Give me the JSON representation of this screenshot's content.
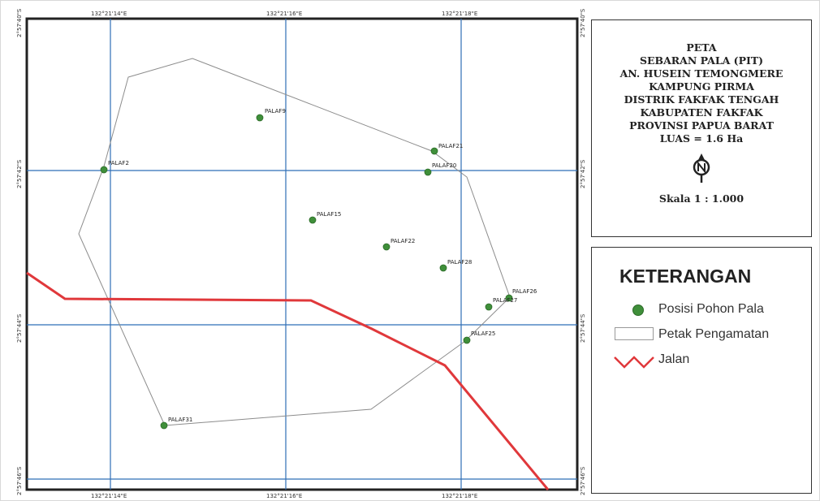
{
  "map": {
    "lon_labels": [
      "132°21'14\"E",
      "132°21'16\"E",
      "132°21'18\"E"
    ],
    "lat_labels": [
      "2°57'40\"S",
      "2°57'42\"S",
      "2°57'44\"S",
      "2°57'46\"S"
    ],
    "points": [
      {
        "id": "PALAF2",
        "label": "PALAF2"
      },
      {
        "id": "PALAF9",
        "label": "PALAF9"
      },
      {
        "id": "PALAF21",
        "label": "PALAF21"
      },
      {
        "id": "PALAF20",
        "label": "PALAF20"
      },
      {
        "id": "PALAF15",
        "label": "PALAF15"
      },
      {
        "id": "PALAF22",
        "label": "PALAF22"
      },
      {
        "id": "PALAF28",
        "label": "PALAF28"
      },
      {
        "id": "PALAF26",
        "label": "PALAF26"
      },
      {
        "id": "PALAF27",
        "label": "PALAF27"
      },
      {
        "id": "PALAF25",
        "label": "PALAF25"
      },
      {
        "id": "PALAF31",
        "label": "PALAF31"
      }
    ],
    "colors": {
      "grid": "#2f6fb6",
      "road": "#e0383b",
      "plot_outline": "#8c8c8c",
      "tree": "#3f8f3a"
    }
  },
  "title": {
    "lines": [
      "PETA",
      "SEBARAN PALA (PIT)",
      "AN. HUSEIN TEMONGMERE",
      "KAMPUNG PIRMA",
      "DISTRIK FAKFAK TENGAH",
      "KABUPATEN FAKFAK",
      "PROVINSI PAPUA BARAT",
      "LUAS = 1.6 Ha"
    ],
    "north_icon": "north-arrow-icon",
    "scale": "Skala 1 : 1.000"
  },
  "legend": {
    "title": "KETERANGAN",
    "items": [
      {
        "symbol": "green-dot",
        "label": "Posisi Pohon Pala"
      },
      {
        "symbol": "outline-rect",
        "label": "Petak Pengamatan"
      },
      {
        "symbol": "red-line",
        "label": "Jalan"
      }
    ]
  }
}
